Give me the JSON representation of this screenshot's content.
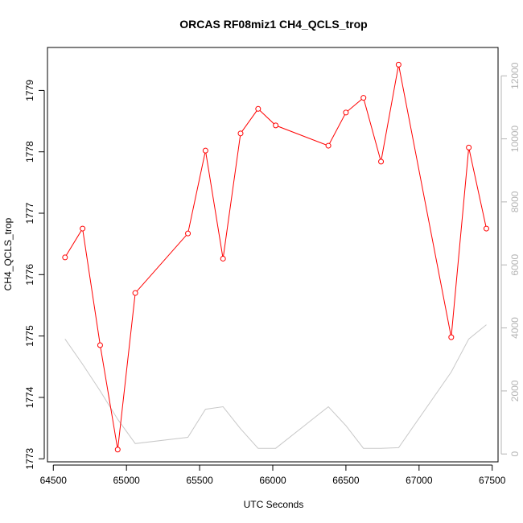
{
  "chart_data": {
    "type": "line",
    "title": "ORCAS RF08miz1 CH4_QCLS_trop",
    "xlabel": "UTC Seconds",
    "ylabel": "CH4_QCLS_trop",
    "xlim": [
      64460,
      67540
    ],
    "ylim": [
      1772.95,
      1779.7
    ],
    "y2lim": [
      -250,
      12900
    ],
    "x_ticks": [
      64500,
      65000,
      65500,
      66000,
      66500,
      67000,
      67500
    ],
    "x_tick_labels": [
      "64500",
      "65000",
      "65500",
      "66000",
      "66500",
      "67000",
      "67500"
    ],
    "y_ticks": [
      1773,
      1774,
      1775,
      1776,
      1777,
      1778,
      1779
    ],
    "y_tick_labels": [
      "1773",
      "1774",
      "1775",
      "1776",
      "1777",
      "1778",
      "1779"
    ],
    "y2_ticks": [
      0,
      2000,
      4000,
      6000,
      8000,
      10000,
      12000
    ],
    "y2_tick_labels": [
      "0",
      "2000",
      "4000",
      "6000",
      "8000",
      "10000",
      "12000"
    ],
    "grid": false,
    "series": [
      {
        "axis": "left",
        "color": "#ff0000",
        "marker": "open-circle",
        "x": [
          64580,
          64700,
          64820,
          64940,
          65060,
          65420,
          65540,
          65660,
          65780,
          65900,
          66020,
          66380,
          66500,
          66620,
          66740,
          66860,
          67220,
          67340,
          67460
        ],
        "values": [
          1776.28,
          1776.75,
          1774.85,
          1773.15,
          1775.7,
          1776.67,
          1778.02,
          1776.26,
          1778.3,
          1778.7,
          1778.43,
          1778.1,
          1778.64,
          1778.88,
          1777.84,
          1779.42,
          1774.98,
          1778.07,
          1776.75
        ]
      },
      {
        "axis": "right",
        "color": "#c8c8c8",
        "marker": "none",
        "x": [
          64580,
          64700,
          64820,
          64940,
          65060,
          65420,
          65540,
          65660,
          65780,
          65900,
          66020,
          66380,
          66500,
          66620,
          66740,
          66860,
          67220,
          67340,
          67460
        ],
        "values": [
          3650,
          2850,
          2000,
          1100,
          330,
          530,
          1420,
          1500,
          800,
          180,
          180,
          1500,
          900,
          180,
          180,
          200,
          2600,
          3650,
          4100
        ]
      }
    ]
  }
}
